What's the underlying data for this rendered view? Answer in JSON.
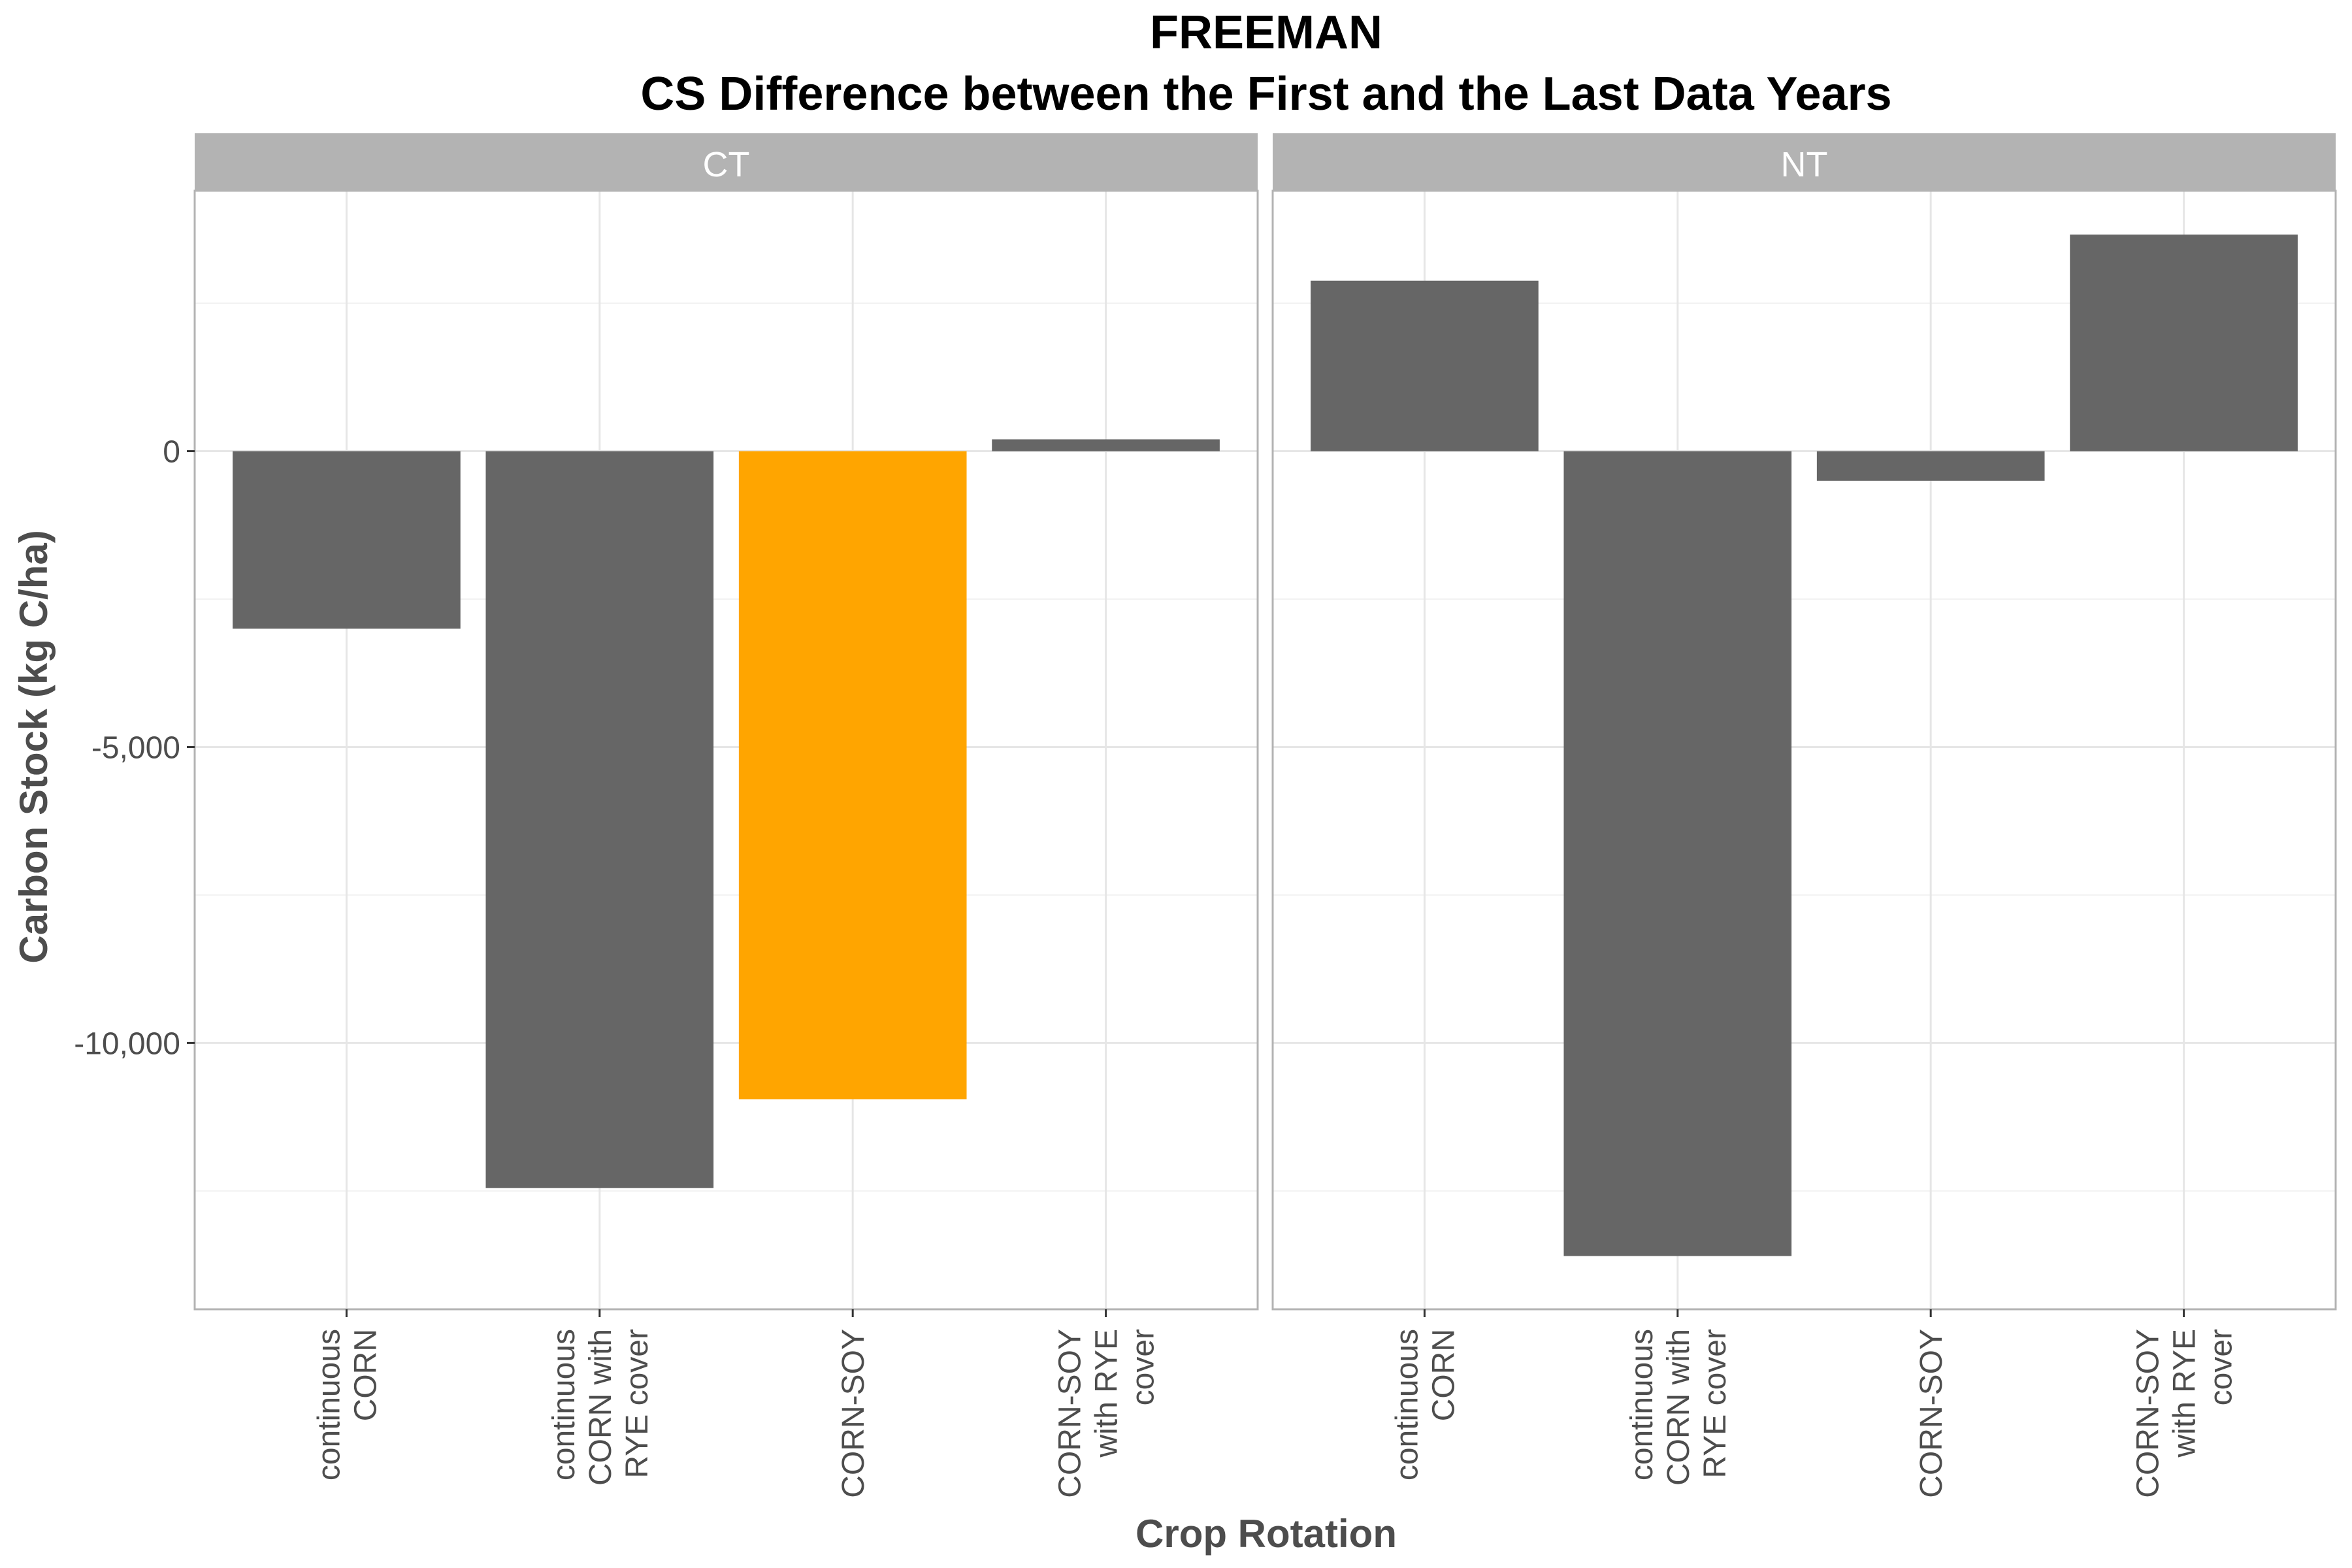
{
  "chart_data": {
    "type": "bar",
    "title": "FREEMAN",
    "subtitle": "CS Difference between the First and the Last Data Years",
    "xlabel": "Crop Rotation",
    "ylabel": "Carbon Stock (kg C/ha)",
    "categories": [
      [
        "continuous",
        "CORN"
      ],
      [
        "continuous",
        "CORN with",
        "RYE cover"
      ],
      [
        "CORN-SOY"
      ],
      [
        "CORN-SOY",
        "with RYE",
        "cover"
      ]
    ],
    "ylim": [
      -14500,
      4400
    ],
    "yticks": [
      0,
      -5000,
      -10000
    ],
    "ytick_labels": [
      "0",
      "-5,000",
      "-10,000"
    ],
    "grid": true,
    "colors": {
      "default_bar": "#666666",
      "highlight_bar": "#ffa500",
      "strip": "#b3b3b3"
    },
    "panels": [
      {
        "name": "CT",
        "values": [
          -3000,
          -12450,
          -10950,
          200
        ],
        "highlight_index": 2
      },
      {
        "name": "NT",
        "values": [
          2880,
          -13600,
          -500,
          3660
        ],
        "highlight_index": null
      }
    ]
  }
}
